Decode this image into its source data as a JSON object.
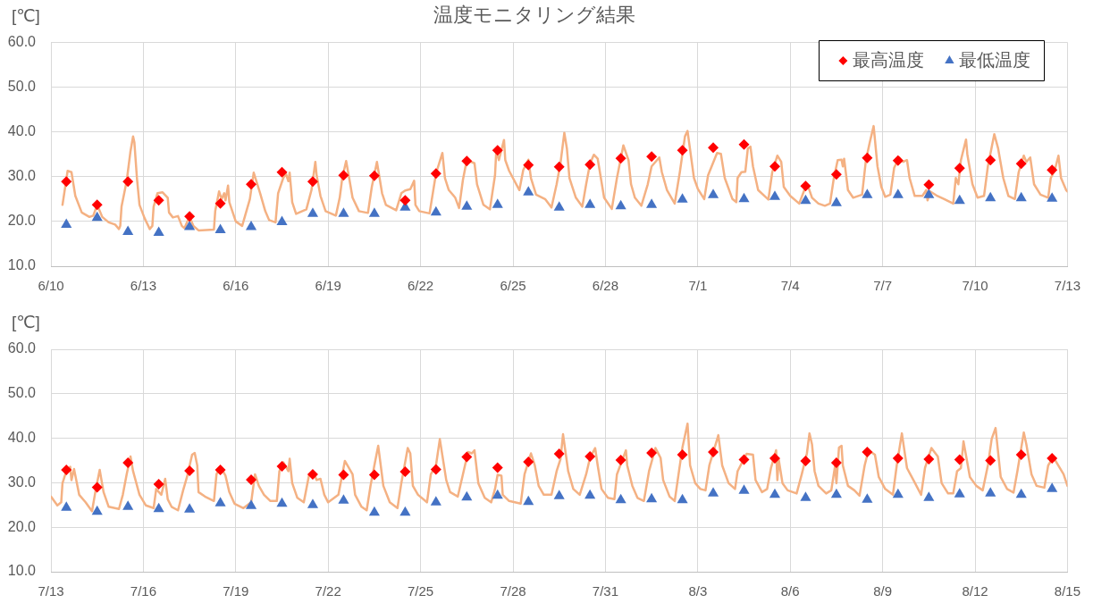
{
  "chart_data": [
    {
      "type": "line",
      "title": "温度モニタリング結果",
      "ylabel": "[℃]",
      "xlim": [
        "--06-10",
        "--07-13"
      ],
      "xticks": [
        {
          "value": "--06-10",
          "label": "6/10"
        },
        {
          "value": "--06-13",
          "label": "6/13"
        },
        {
          "value": "--06-16",
          "label": "6/16"
        },
        {
          "value": "--06-19",
          "label": "6/19"
        },
        {
          "value": "--06-22",
          "label": "6/22"
        },
        {
          "value": "--06-25",
          "label": "6/25"
        },
        {
          "value": "--06-28",
          "label": "6/28"
        },
        {
          "value": "--07-01",
          "label": "7/1"
        },
        {
          "value": "--07-04",
          "label": "7/4"
        },
        {
          "value": "--07-07",
          "label": "7/7"
        },
        {
          "value": "--07-10",
          "label": "7/10"
        },
        {
          "value": "--07-13",
          "label": "7/13"
        }
      ],
      "ylim": [
        10,
        60
      ],
      "yticks": [
        {
          "value": 10,
          "label": "10.0"
        },
        {
          "value": 20,
          "label": "20.0"
        },
        {
          "value": 30,
          "label": "30.0"
        },
        {
          "value": 40,
          "label": "40.0"
        },
        {
          "value": 50,
          "label": "50.0"
        },
        {
          "value": 60,
          "label": "60.0"
        }
      ],
      "grid": true,
      "legend": "top right",
      "series": [
        {
          "type": "line",
          "color": "#f4b183",
          "x": [
            "--06-10T09:00",
            "--06-10T13:00",
            "--06-10T16:00",
            "--06-10T19:00",
            "--06-11T00:00",
            "--06-11T06:00",
            "--06-11T09:00",
            "--06-11T12:00",
            "--06-11T16:00",
            "--06-11T21:00",
            "--06-12T02:00",
            "--06-12T05:00",
            "--06-12T06:00",
            "--06-12T07:00",
            "--06-12T11:00",
            "--06-12T14:00",
            "--06-12T16:00",
            "--06-12T17:00",
            "--06-12T19:00",
            "--06-12T21:00",
            "--06-13T01:00",
            "--06-13T05:00",
            "--06-13T07:00",
            "--06-13T08:00",
            "--06-13T11:00",
            "--06-13T15:00",
            "--06-13T19:00",
            "--06-13T20:00",
            "--06-13T23:00",
            "--06-14T03:00",
            "--06-14T06:00",
            "--06-14T08:00",
            "--06-14T12:00",
            "--06-14T15:00",
            "--06-14T19:00",
            "--06-15T07:00",
            "--06-15T08:00",
            "--06-15T11:00",
            "--06-15T13:00",
            "--06-15T15:00",
            "--06-15T16:00",
            "--06-15T18:00",
            "--06-15T19:00",
            "--06-16T00:00",
            "--06-16T05:00",
            "--06-16T11:00",
            "--06-16T14:00",
            "--06-16T19:00",
            "--06-16T23:00",
            "--06-17T02:00",
            "--06-17T07:00",
            "--06-17T09:00",
            "--06-17T13:00",
            "--06-17T15:00",
            "--06-17T17:00",
            "--06-17T18:00",
            "--06-17T20:00",
            "--06-17T23:00",
            "--06-18T07:00",
            "--06-18T11:00",
            "--06-18T14:00",
            "--06-18T15:00",
            "--06-18T18:00",
            "--06-18T22:00",
            "--06-19T06:00",
            "--06-19T09:00",
            "--06-19T11:00",
            "--06-19T14:00",
            "--06-19T16:00",
            "--06-19T19:00",
            "--06-20T00:00",
            "--06-20T07:00",
            "--06-20T10:00",
            "--06-20T14:00",
            "--06-20T18:00",
            "--06-20T21:00",
            "--06-21T05:00",
            "--06-21T09:00",
            "--06-21T12:00",
            "--06-21T16:00",
            "--06-21T19:00",
            "--06-21T20:00",
            "--06-21T23:00",
            "--06-22T07:00",
            "--06-22T12:00",
            "--06-22T17:00",
            "--06-22T19:00",
            "--06-22T22:00",
            "--06-23T03:00",
            "--06-23T06:00",
            "--06-23T09:00",
            "--06-23T12:00",
            "--06-23T18:00",
            "--06-23T20:00",
            "--06-24T01:00",
            "--06-24T06:00",
            "--06-24T10:00",
            "--06-24T11:00",
            "--06-24T13:00",
            "--06-24T17:00",
            "--06-24T18:00",
            "--06-24T21:00",
            "--06-25T05:00",
            "--06-25T08:00",
            "--06-25T12:00",
            "--06-25T14:00",
            "--06-25T18:00",
            "--06-26T01:00",
            "--06-26T06:00",
            "--06-26T10:00",
            "--06-26T13:00",
            "--06-26T16:00",
            "--06-26T18:00",
            "--06-26T20:00",
            "--06-27T01:00",
            "--06-27T06:00",
            "--06-27T09:00",
            "--06-27T12:00",
            "--06-27T15:00",
            "--06-27T18:00",
            "--06-27T23:00",
            "--06-28T05:00",
            "--06-28T09:00",
            "--06-28T14:00",
            "--06-28T18:00",
            "--06-28T20:00",
            "--06-28T23:00",
            "--06-29T04:00",
            "--06-29T09:00",
            "--06-29T12:00",
            "--06-29T18:00",
            "--06-29T20:00",
            "--06-30T00:00",
            "--06-30T06:00",
            "--06-30T10:00",
            "--06-30T14:00",
            "--06-30T16:00",
            "--06-30T21:00",
            "--07-01T00:00",
            "--07-01T05:00",
            "--07-01T08:00",
            "--07-01T15:00",
            "--07-01T18:00",
            "--07-01T21:00",
            "--07-02T03:00",
            "--07-02T06:00",
            "--07-02T07:00",
            "--07-02T10:00",
            "--07-02T13:00",
            "--07-02T15:00",
            "--07-02T17:00",
            "--07-02T19:00",
            "--07-02T23:00",
            "--07-03T07:00",
            "--07-03T10:00",
            "--07-03T14:00",
            "--07-03T17:00",
            "--07-03T19:00",
            "--07-04T00:00",
            "--07-04T07:00",
            "--07-04T11:00",
            "--07-04T14:00",
            "--07-04T17:00",
            "--07-04T22:00",
            "--07-05T03:00",
            "--07-05T07:00",
            "--07-05T10:00",
            "--07-05T13:00",
            "--07-05T16:00",
            "--07-05T17:00",
            "--07-05T18:00",
            "--07-05T21:00",
            "--07-06T01:00",
            "--07-06T08:00",
            "--07-06T11:00",
            "--07-06T14:00",
            "--07-06T17:00",
            "--07-06T20:00",
            "--07-06T23:00",
            "--07-07T02:00",
            "--07-07T06:00",
            "--07-07T09:00",
            "--07-07T13:00",
            "--07-07T16:00",
            "--07-07T19:00",
            "--07-07T21:00",
            "--07-08T01:00",
            "--07-08T07:00",
            "--07-08T10:00",
            "--07-08T11:00",
            "--07-08T13:00",
            "--07-08T18:00",
            "--07-09T00:00",
            "--07-09T07:00",
            "--07-09T09:00",
            "--07-09T11:00",
            "--07-09T13:00",
            "--07-09T17:00",
            "--07-09T18:00",
            "--07-09T22:00",
            "--07-10T02:00",
            "--07-10T07:00",
            "--07-10T10:00",
            "--07-10T15:00",
            "--07-10T18:00",
            "--07-10T22:00",
            "--07-11T02:00",
            "--07-11T07:00",
            "--07-11T10:00",
            "--07-11T14:00",
            "--07-11T16:00",
            "--07-11T19:00",
            "--07-11T22:00",
            "--07-12T03:00",
            "--07-12T09:00",
            "--07-12T11:00",
            "--07-12T14:00",
            "--07-12T17:00",
            "--07-12T19:00",
            "--07-12T23:00",
            "--07-13T00:00"
          ],
          "values": [
            23.7,
            31.3,
            31.0,
            25.7,
            22.0,
            21.0,
            21.3,
            23.7,
            21.0,
            19.8,
            19.3,
            18.3,
            19.0,
            23.3,
            29.0,
            35.7,
            39.0,
            37.7,
            29.7,
            23.7,
            20.7,
            18.3,
            19.0,
            23.3,
            26.3,
            26.5,
            25.3,
            22.0,
            20.9,
            21.2,
            19.0,
            18.5,
            21.1,
            19.0,
            18.0,
            18.2,
            22.3,
            26.7,
            25.0,
            26.3,
            24.7,
            28.0,
            24.3,
            20.0,
            19.0,
            25.0,
            30.9,
            26.3,
            22.3,
            20.3,
            19.8,
            26.3,
            29.7,
            30.7,
            29.0,
            30.9,
            24.3,
            21.7,
            22.7,
            27.0,
            33.3,
            30.3,
            25.7,
            22.3,
            21.3,
            25.3,
            29.7,
            33.5,
            30.3,
            25.3,
            22.3,
            21.9,
            27.7,
            33.3,
            26.3,
            23.7,
            22.5,
            26.3,
            26.9,
            27.2,
            29.1,
            23.7,
            22.3,
            21.8,
            30.7,
            35.3,
            29.7,
            27.0,
            25.3,
            23.0,
            29.3,
            33.7,
            33.0,
            28.3,
            23.7,
            22.7,
            30.3,
            36.0,
            33.7,
            38.2,
            33.7,
            31.3,
            27.0,
            31.5,
            33.8,
            29.7,
            26.0,
            25.0,
            23.1,
            28.3,
            33.0,
            39.8,
            36.3,
            29.7,
            25.3,
            23.3,
            28.3,
            32.9,
            34.9,
            34.0,
            25.3,
            22.8,
            29.7,
            37.0,
            33.7,
            28.3,
            25.3,
            23.5,
            28.3,
            32.3,
            34.3,
            31.0,
            27.0,
            24.0,
            31.0,
            39.0,
            40.2,
            29.7,
            27.3,
            25.0,
            30.3,
            35.3,
            35.1,
            29.7,
            25.0,
            24.3,
            29.7,
            31.0,
            31.1,
            36.3,
            36.7,
            32.3,
            27.0,
            24.9,
            31.0,
            34.7,
            33.3,
            27.7,
            25.7,
            24.0,
            27.0,
            27.8,
            25.3,
            24.0,
            23.5,
            24.0,
            29.7,
            33.7,
            33.8,
            32.3,
            34.0,
            27.0,
            25.3,
            26.0,
            33.7,
            37.7,
            41.3,
            32.3,
            27.7,
            25.5,
            26.0,
            32.0,
            34.3,
            33.3,
            33.7,
            29.7,
            25.7,
            25.7,
            27.0,
            24.7,
            26.7,
            25.8,
            25.0,
            24.0,
            29.7,
            28.3,
            33.7,
            38.3,
            35.0,
            28.3,
            25.3,
            25.7,
            32.3,
            39.5,
            36.3,
            29.7,
            25.7,
            25.0,
            31.0,
            34.7,
            33.3,
            34.3,
            28.3,
            26.0,
            25.3,
            29.7,
            31.3,
            34.7,
            29.7,
            27.0,
            26.7
          ]
        },
        {
          "type": "scatter",
          "name": "最高温度",
          "color": "#ff0000",
          "marker": "diamond",
          "x": [
            "--06-10T12:00",
            "--06-11T12:00",
            "--06-12T12:00",
            "--06-13T12:00",
            "--06-14T12:00",
            "--06-15T12:00",
            "--06-16T12:00",
            "--06-17T12:00",
            "--06-18T12:00",
            "--06-19T12:00",
            "--06-20T12:00",
            "--06-21T12:00",
            "--06-22T12:00",
            "--06-23T12:00",
            "--06-24T12:00",
            "--06-25T12:00",
            "--06-26T12:00",
            "--06-27T12:00",
            "--06-28T12:00",
            "--06-29T12:00",
            "--06-30T12:00",
            "--07-01T12:00",
            "--07-02T12:00",
            "--07-03T12:00",
            "--07-04T12:00",
            "--07-05T12:00",
            "--07-06T12:00",
            "--07-07T12:00",
            "--07-08T12:00",
            "--07-09T12:00",
            "--07-10T12:00",
            "--07-11T12:00",
            "--07-12T12:00"
          ],
          "values": [
            28.9,
            23.7,
            28.9,
            24.7,
            21.1,
            24.0,
            28.3,
            31.0,
            28.9,
            30.3,
            30.2,
            24.7,
            30.7,
            33.5,
            35.9,
            32.6,
            32.2,
            32.7,
            34.1,
            34.5,
            35.9,
            36.5,
            37.2,
            32.3,
            27.9,
            30.5,
            34.2,
            33.6,
            28.2,
            31.9,
            33.7,
            32.9,
            31.5
          ]
        },
        {
          "type": "scatter",
          "name": "最低温度",
          "color": "#4472c4",
          "marker": "triangle",
          "x": [
            "--06-10T12:00",
            "--06-11T12:00",
            "--06-12T12:00",
            "--06-13T12:00",
            "--06-14T12:00",
            "--06-15T12:00",
            "--06-16T12:00",
            "--06-17T12:00",
            "--06-18T12:00",
            "--06-19T12:00",
            "--06-20T12:00",
            "--06-21T12:00",
            "--06-22T12:00",
            "--06-23T12:00",
            "--06-24T12:00",
            "--06-25T12:00",
            "--06-26T12:00",
            "--06-27T12:00",
            "--06-28T12:00",
            "--06-29T12:00",
            "--06-30T12:00",
            "--07-01T12:00",
            "--07-02T12:00",
            "--07-03T12:00",
            "--07-04T12:00",
            "--07-05T12:00",
            "--07-06T12:00",
            "--07-07T12:00",
            "--07-08T12:00",
            "--07-09T12:00",
            "--07-10T12:00",
            "--07-11T12:00",
            "--07-12T12:00"
          ],
          "values": [
            19.3,
            20.8,
            17.7,
            17.5,
            18.8,
            18.1,
            18.8,
            19.9,
            21.7,
            21.7,
            21.7,
            23.1,
            22.0,
            23.3,
            23.7,
            26.5,
            23.1,
            23.7,
            23.4,
            23.7,
            24.9,
            25.9,
            25.0,
            25.5,
            24.6,
            24.1,
            25.9,
            25.9,
            25.9,
            24.6,
            25.2,
            25.2,
            25.1
          ]
        }
      ]
    },
    {
      "type": "line",
      "ylabel": "[℃]",
      "xlim": [
        "--07-13",
        "--08-15"
      ],
      "xticks": [
        {
          "value": "--07-13",
          "label": "7/13"
        },
        {
          "value": "--07-16",
          "label": "7/16"
        },
        {
          "value": "--07-19",
          "label": "7/19"
        },
        {
          "value": "--07-22",
          "label": "7/22"
        },
        {
          "value": "--07-25",
          "label": "7/25"
        },
        {
          "value": "--07-28",
          "label": "7/28"
        },
        {
          "value": "--07-31",
          "label": "7/31"
        },
        {
          "value": "--08-03",
          "label": "8/3"
        },
        {
          "value": "--08-06",
          "label": "8/6"
        },
        {
          "value": "--08-09",
          "label": "8/9"
        },
        {
          "value": "--08-12",
          "label": "8/12"
        },
        {
          "value": "--08-15",
          "label": "8/15"
        }
      ],
      "ylim": [
        10,
        60
      ],
      "yticks": [
        {
          "value": 10,
          "label": "10.0"
        },
        {
          "value": 20,
          "label": "20.0"
        },
        {
          "value": 30,
          "label": "30.0"
        },
        {
          "value": 40,
          "label": "40.0"
        },
        {
          "value": 50,
          "label": "50.0"
        },
        {
          "value": 60,
          "label": "60.0"
        }
      ],
      "grid": true,
      "series": [
        {
          "type": "line",
          "color": "#f4b183",
          "x": [
            "--07-13T00:00",
            "--07-13T05:00",
            "--07-13T08:00",
            "--07-13T09:00",
            "--07-13T12:00",
            "--07-13T15:00",
            "--07-13T16:00",
            "--07-13T18:00",
            "--07-13T22:00",
            "--07-14T03:00",
            "--07-14T08:00",
            "--07-14T11:00",
            "--07-14T14:00",
            "--07-14T17:00",
            "--07-14T21:00",
            "--07-15T05:00",
            "--07-15T08:00",
            "--07-15T11:00",
            "--07-15T14:00",
            "--07-15T16:00",
            "--07-15T21:00",
            "--07-16T02:00",
            "--07-16T08:00",
            "--07-16T10:00",
            "--07-16T14:00",
            "--07-16T17:00",
            "--07-16T19:00",
            "--07-16T22:00",
            "--07-17T03:00",
            "--07-17T07:00",
            "--07-17T10:00",
            "--07-17T14:00",
            "--07-17T16:00",
            "--07-17T18:00",
            "--07-17T19:00",
            "--07-18T00:00",
            "--07-18T07:00",
            "--07-18T09:00",
            "--07-18T12:00",
            "--07-18T16:00",
            "--07-18T19:00",
            "--07-18T23:00",
            "--07-19T06:00",
            "--07-19T12:00",
            "--07-19T15:00",
            "--07-19T18:00",
            "--07-19T22:00",
            "--07-20T03:00",
            "--07-20T08:00",
            "--07-20T10:00",
            "--07-20T13:00",
            "--07-20T17:00",
            "--07-20T18:00",
            "--07-20T20:00",
            "--07-21T00:00",
            "--07-21T05:00",
            "--07-21T09:00",
            "--07-21T13:00",
            "--07-21T15:00",
            "--07-21T18:00",
            "--07-21T21:00",
            "--07-22T00:00",
            "--07-22T08:00",
            "--07-22T13:00",
            "--07-22T19:00",
            "--07-22T21:00",
            "--07-23T02:00",
            "--07-23T06:00",
            "--07-23T09:00",
            "--07-23T12:00",
            "--07-23T15:00",
            "--07-23T19:00",
            "--07-24T00:00",
            "--07-24T06:00",
            "--07-24T09:00",
            "--07-24T14:00",
            "--07-24T16:00",
            "--07-24T18:00",
            "--07-24T22:00",
            "--07-25T05:00",
            "--07-25T08:00",
            "--07-25T12:00",
            "--07-25T15:00",
            "--07-25T20:00",
            "--07-25T23:00",
            "--07-26T05:00",
            "--07-26T09:00",
            "--07-26T13:00",
            "--07-26T16:00",
            "--07-26T18:00",
            "--07-26T21:00",
            "--07-27T02:00",
            "--07-27T07:00",
            "--07-27T10:00",
            "--07-27T12:00",
            "--07-27T15:00",
            "--07-27T16:00",
            "--07-27T21:00",
            "--07-28T06:00",
            "--07-28T09:00",
            "--07-28T14:00",
            "--07-28T17:00",
            "--07-28T20:00",
            "--07-29T00:00",
            "--07-29T06:00",
            "--07-29T10:00",
            "--07-29T13:00",
            "--07-29T15:00",
            "--07-29T19:00",
            "--07-29T23:00",
            "--07-30T04:00",
            "--07-30T09:00",
            "--07-30T12:00",
            "--07-30T16:00",
            "--07-30T18:00",
            "--07-30T21:00",
            "--07-31T02:00",
            "--07-31T07:00",
            "--07-31T09:00",
            "--07-31T16:00",
            "--07-31T17:00",
            "--07-31T21:00",
            "--08-01T01:00",
            "--08-01T06:00",
            "--08-01T10:00",
            "--08-01T15:00",
            "--08-01T19:00",
            "--08-01T21:00",
            "--08-02T02:00",
            "--08-02T06:00",
            "--08-02T09:00",
            "--08-02T12:00",
            "--08-02T16:00",
            "--08-02T18:00",
            "--08-02T22:00",
            "--08-03T02:00",
            "--08-03T06:00",
            "--08-03T09:00",
            "--08-03T16:00",
            "--08-03T19:00",
            "--08-04T00:00",
            "--08-04T05:00",
            "--08-04T07:00",
            "--08-04T14:00",
            "--08-04T19:00",
            "--08-04T21:00",
            "--08-05T02:00",
            "--08-05T06:00",
            "--08-05T09:00",
            "--08-05T13:00",
            "--08-05T14:00",
            "--08-05T15:00",
            "--08-05T18:00",
            "--08-05T22:00",
            "--08-06T05:00",
            "--08-06T09:00",
            "--08-06T13:00",
            "--08-06T15:00",
            "--08-06T17:00",
            "--08-06T19:00",
            "--08-06T22:00",
            "--08-07T04:00",
            "--08-07T08:00",
            "--08-07T11:00",
            "--08-07T12:00",
            "--08-07T14:00",
            "--08-07T16:00",
            "--08-07T17:00",
            "--08-07T21:00",
            "--08-08T02:00",
            "--08-08T06:00",
            "--08-08T10:00",
            "--08-08T13:00",
            "--08-08T18:00",
            "--08-08T21:00",
            "--08-09T02:00",
            "--08-09T08:00",
            "--08-09T11:00",
            "--08-09T15:00",
            "--08-09T19:00",
            "--08-10T00:00",
            "--08-10T06:00",
            "--08-10T09:00",
            "--08-10T14:00",
            "--08-10T19:00",
            "--08-10T22:00",
            "--08-11T03:00",
            "--08-11T07:00",
            "--08-11T10:00",
            "--08-11T13:00",
            "--08-11T15:00",
            "--08-11T20:00",
            "--08-12T01:00",
            "--08-12T06:00",
            "--08-12T10:00",
            "--08-12T13:00",
            "--08-12T16:00",
            "--08-12T20:00",
            "--08-13T01:00",
            "--08-13T06:00",
            "--08-13T09:00",
            "--08-13T14:00",
            "--08-13T16:00",
            "--08-13T20:00",
            "--08-14T00:00",
            "--08-14T06:00",
            "--08-14T09:00",
            "--08-14T13:00",
            "--08-14T16:00",
            "--08-14T21:00",
            "--08-15T00:00"
          ],
          "values": [
            26.9,
            24.9,
            25.6,
            29.9,
            32.6,
            33.6,
            30.6,
            33.1,
            27.3,
            25.6,
            23.6,
            28.6,
            32.9,
            27.9,
            24.6,
            24.1,
            27.3,
            31.9,
            35.9,
            32.6,
            27.3,
            24.9,
            24.3,
            28.6,
            27.3,
            30.9,
            26.3,
            24.6,
            23.8,
            28.3,
            31.3,
            36.3,
            36.7,
            33.9,
            27.9,
            26.9,
            25.9,
            31.9,
            33.6,
            31.6,
            27.9,
            25.3,
            24.3,
            25.6,
            31.9,
            29.3,
            27.3,
            25.9,
            25.9,
            32.6,
            34.6,
            32.6,
            35.4,
            29.9,
            26.6,
            25.6,
            31.6,
            32.1,
            30.6,
            30.9,
            27.3,
            25.6,
            27.3,
            34.9,
            31.9,
            27.3,
            24.6,
            23.8,
            29.3,
            33.9,
            38.3,
            29.3,
            25.6,
            24.3,
            29.9,
            37.8,
            36.6,
            29.3,
            27.3,
            25.6,
            31.9,
            33.9,
            39.8,
            30.6,
            27.9,
            26.9,
            31.9,
            36.9,
            36.6,
            37.3,
            29.9,
            26.6,
            25.6,
            28.6,
            31.8,
            31.6,
            27.3,
            25.9,
            25.3,
            31.9,
            36.6,
            33.9,
            29.3,
            27.3,
            27.3,
            32.6,
            35.3,
            40.9,
            32.6,
            28.6,
            27.3,
            31.9,
            35.6,
            37.8,
            33.9,
            28.6,
            26.6,
            26.3,
            31.9,
            37.3,
            33.9,
            29.3,
            26.6,
            25.9,
            32.6,
            37.8,
            35.6,
            30.6,
            26.9,
            25.9,
            31.9,
            37.9,
            43.3,
            33.9,
            29.9,
            28.6,
            28.3,
            33.9,
            40.7,
            33.9,
            29.9,
            28.6,
            32.6,
            36.5,
            36.3,
            30.6,
            27.9,
            28.6,
            33.3,
            37.3,
            30.6,
            35.3,
            29.9,
            28.3,
            27.6,
            31.9,
            36.6,
            41.1,
            38.6,
            32.6,
            29.3,
            27.6,
            28.3,
            33.9,
            29.9,
            37.9,
            38.3,
            33.9,
            29.3,
            28.3,
            27.1,
            33.9,
            37.3,
            36.3,
            31.3,
            28.6,
            27.3,
            33.9,
            41.1,
            33.3,
            30.6,
            27.3,
            33.3,
            37.8,
            35.9,
            29.9,
            27.6,
            27.6,
            32.6,
            33.3,
            39.3,
            31.3,
            29.3,
            28.3,
            33.9,
            39.9,
            42.3,
            31.3,
            28.6,
            27.8,
            32.6,
            41.3,
            38.6,
            31.9,
            29.3,
            28.9,
            33.9,
            35.8,
            34.3,
            31.9,
            29.3
          ]
        },
        {
          "type": "scatter",
          "color": "#ff0000",
          "marker": "diamond",
          "x": [
            "--07-13T12:00",
            "--07-14T12:00",
            "--07-15T12:00",
            "--07-16T12:00",
            "--07-17T12:00",
            "--07-18T12:00",
            "--07-19T12:00",
            "--07-20T12:00",
            "--07-21T12:00",
            "--07-22T12:00",
            "--07-23T12:00",
            "--07-24T12:00",
            "--07-25T12:00",
            "--07-26T12:00",
            "--07-27T12:00",
            "--07-28T12:00",
            "--07-29T12:00",
            "--07-30T12:00",
            "--07-31T12:00",
            "--08-01T12:00",
            "--08-02T12:00",
            "--08-03T12:00",
            "--08-04T12:00",
            "--08-05T12:00",
            "--08-06T12:00",
            "--08-07T12:00",
            "--08-08T12:00",
            "--08-09T12:00",
            "--08-10T12:00",
            "--08-11T12:00",
            "--08-12T12:00",
            "--08-13T12:00",
            "--08-14T12:00"
          ],
          "values": [
            32.9,
            29.0,
            34.5,
            29.7,
            32.7,
            32.9,
            30.7,
            33.7,
            31.9,
            31.8,
            31.8,
            32.5,
            33.0,
            35.8,
            33.4,
            34.7,
            36.5,
            35.9,
            35.1,
            36.7,
            36.3,
            36.9,
            35.2,
            35.5,
            34.9,
            34.5,
            36.9,
            35.5,
            35.3,
            35.2,
            35.0,
            36.3,
            35.5
          ]
        },
        {
          "type": "scatter",
          "color": "#4472c4",
          "marker": "triangle",
          "x": [
            "--07-13T12:00",
            "--07-14T12:00",
            "--07-15T12:00",
            "--07-16T12:00",
            "--07-17T12:00",
            "--07-18T12:00",
            "--07-19T12:00",
            "--07-20T12:00",
            "--07-21T12:00",
            "--07-22T12:00",
            "--07-23T12:00",
            "--07-24T12:00",
            "--07-25T12:00",
            "--07-26T12:00",
            "--07-27T12:00",
            "--07-28T12:00",
            "--07-29T12:00",
            "--07-30T12:00",
            "--07-31T12:00",
            "--08-01T12:00",
            "--08-02T12:00",
            "--08-03T12:00",
            "--08-04T12:00",
            "--08-05T12:00",
            "--08-06T12:00",
            "--08-07T12:00",
            "--08-08T12:00",
            "--08-09T12:00",
            "--08-10T12:00",
            "--08-11T12:00",
            "--08-12T12:00",
            "--08-13T12:00",
            "--08-14T12:00"
          ],
          "values": [
            24.4,
            23.5,
            24.6,
            24.1,
            24.0,
            25.4,
            24.8,
            25.3,
            25.0,
            26.0,
            23.3,
            23.3,
            25.6,
            26.7,
            27.1,
            25.7,
            27.0,
            27.1,
            26.1,
            26.3,
            26.1,
            27.6,
            28.2,
            27.3,
            26.6,
            27.3,
            26.2,
            27.3,
            26.6,
            27.4,
            27.6,
            27.3,
            28.6
          ]
        }
      ]
    }
  ]
}
